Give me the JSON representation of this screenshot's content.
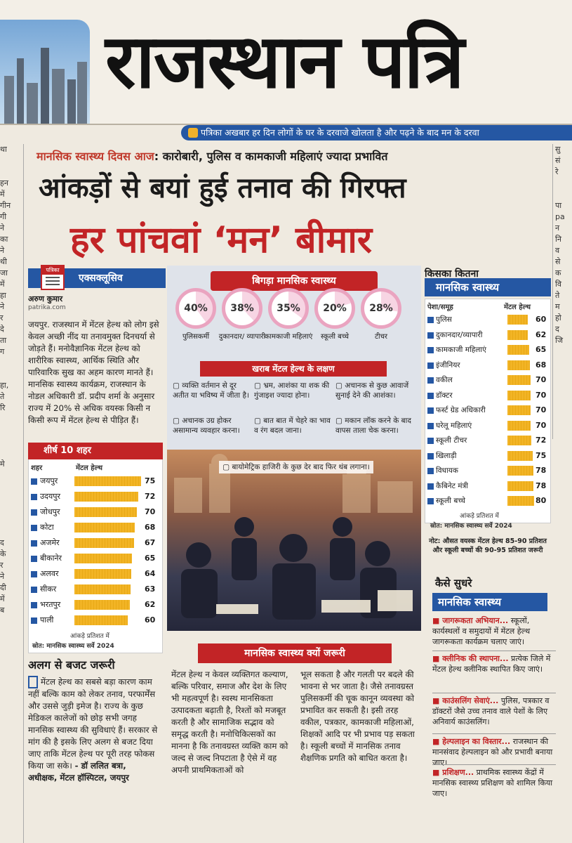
{
  "masthead": {
    "title": "राजस्थान पत्रि",
    "tagline": "पत्रिका अखबार हर दिन लोगों के घर के दरवाजे खोलता है और पढ़ने के बाद मन के दरवा"
  },
  "left_strip": [
    "था",
    "",
    "",
    "हन",
    "में",
    "गीन",
    "गी",
    "ने",
    "का",
    "ने",
    "थी",
    "जा",
    "में",
    "हा",
    "ने",
    "र",
    "दे",
    "ता",
    "ग",
    "",
    "",
    "हा,",
    "ते",
    "रि",
    "",
    "",
    "",
    "",
    "मे",
    "",
    "",
    "",
    "",
    "",
    "",
    "द",
    "के",
    "र",
    "ने",
    "दी",
    "में",
    "ब"
  ],
  "right_strip": [
    "सु",
    "सं",
    "रे",
    "",
    "",
    "पा",
    "pa",
    "न",
    "नि",
    "व",
    "से",
    "क",
    "वि",
    "ते",
    "म",
    "हो",
    "द",
    "जि",
    "",
    "",
    "",
    "",
    "",
    "",
    "",
    "",
    "प",
    "",
    "गि"
  ],
  "kicker": {
    "lead": "मानसिक स्वास्थ्य दिवस आज",
    "rest": ": कारोबारी, पुलिस व कामकाजी महिलाएं ज्यादा प्रभावित"
  },
  "headline": {
    "line1": "आंकड़ों से बयां हुई तनाव की गिरफ्त",
    "line2": "हर पांचवां ‘मन’ बीमार"
  },
  "byline": {
    "label": "एक्सक्लूसिव",
    "logo": "पत्रिका",
    "author": "अरुण कुमार",
    "site": "patrika.com"
  },
  "intro": "जयपुर. राजस्थान में मेंटल हेल्थ को लोग इसे केवल अच्छी नींद या तनावमुक्त दिनचर्या से जोड़ते हैं। मनोवैज्ञानिक मेंटल हेल्थ को शारीरिक स्वास्थ्य, आर्थिक स्थिति और पारिवारिक सुख का अहम कारण मानते हैं। मानसिक स्वास्थ्य कार्यक्रम, राजस्थान के नोडल अधिकारी डॉ. प्रदीप शर्मा के अनुसार राज्य में 20% से अधिक वयस्क किसी न किसी रूप में मेंटल हेल्थ से पीड़ित हैं।",
  "cities": {
    "title": "शीर्ष 10 शहर",
    "col_city": "शहर",
    "col_value": "मेंटल हेल्थ",
    "rows": [
      {
        "name": "जयपुर",
        "value": 75
      },
      {
        "name": "उदयपुर",
        "value": 72
      },
      {
        "name": "जोधपुर",
        "value": 70
      },
      {
        "name": "कोटा",
        "value": 68
      },
      {
        "name": "अजमेर",
        "value": 67
      },
      {
        "name": "बीकानेर",
        "value": 65
      },
      {
        "name": "अलवर",
        "value": 64
      },
      {
        "name": "सीकर",
        "value": 63
      },
      {
        "name": "भरतपुर",
        "value": 62
      },
      {
        "name": "पाली",
        "value": 60
      }
    ],
    "unit_note": "आंकड़े प्रतिशत में",
    "source": "स्रोत: मानसिक स्वास्थ्य सर्वे 2024"
  },
  "budget": {
    "title": "अलग से बजट जरूरी",
    "text": "मेंटल हेल्थ का सबसे बड़ा कारण काम नहीं बल्कि काम को लेकर तनाव, परफार्मेंस और उससे जुड़ी इमेज है। राज्य के कुछ मेडिकल कालेजों को छोड़ सभी जगह मानसिक स्वास्थ्य की सुविधाएं हैं। सरकार से मांग की है इसके लिए अलग से बजट दिया जाए ताकि मेंटल हेल्थ पर पूरी तरह फोकस किया जा सके।",
    "quote_by": "- डॉ ललित बत्रा,",
    "designation": "अधीक्षक, मेंटल हॉस्पिटल, जयपुर"
  },
  "center": {
    "title": "बिगड़ा मानसिक स्वास्थ्य",
    "groups": [
      {
        "value": "40%",
        "label": "पुलिसकर्मी"
      },
      {
        "value": "38%",
        "label": "दुकानदार/ व्यापारी"
      },
      {
        "value": "35%",
        "label": "कामकाजी महिलाएं"
      },
      {
        "value": "20%",
        "label": "स्कूली बच्चे"
      },
      {
        "value": "28%",
        "label": "टीचर"
      }
    ],
    "symptoms_title": "खराब मेंटल हेल्थ के लक्षण",
    "symptoms": [
      "व्यक्ति वर्तमान से दूर अतीत या भविष्य में जीता है।",
      "भ्रम, आशंका या शक की गुंजाइश ज्यादा होना।",
      "अचानक से कुछ आवाजें सुनाई देने की आशंका।",
      "अचानक उग्र होकर असामान्य व्यवहार करना।",
      "बात बात में चेहरे का भाव व रंग बदल जाना।",
      "मकान लॉक करने के बाद वापस ताला चेक करना।",
      "बायोमेट्रिक हाजिरी के कुछ देर बाद फिर थंब लगाना।"
    ]
  },
  "why": {
    "title": "मानसिक स्वास्थ्य क्यों जरूरी",
    "col1": "मेंटल हेल्थ न केवल व्यक्तिगत कल्याण, बल्कि परिवार, समाज और देश के लिए भी महत्वपूर्ण है। स्वस्थ मानसिकता उत्पादकता बढ़ाती है, रिश्तों को मजबूत करती है और सामाजिक सद्भाव को समृद्ध करती है। मनोचिकित्सकों का मानना है कि तनावग्रस्त व्यक्ति काम को जल्द से जल्द निपटाता है ऐसे में वह अपनी प्राथमिकताओं को",
    "col2": "भूल सकता है और गलती पर बदले की भावना से भर जाता है। जैसे तनावग्रस्त पुलिसकर्मी की चूक कानून व्यवस्था को प्रभावित कर सकती है। इसी तरह वकील, पत्रकार, कामकाजी महिलाओं, शिक्षकों आदि पर भी प्रभाव पड़ सकता है। स्कूली बच्चों में मानसिक तनाव शैक्षणिक प्रगति को बाधित करता है।"
  },
  "professions": {
    "title1": "किसका कितना",
    "title2": "मानसिक स्वास्थ्य",
    "col_prof": "पेशा/समूह",
    "col_value": "मेंटल हेल्थ",
    "rows": [
      {
        "name": "पुलिस",
        "value": 60
      },
      {
        "name": "दुकानदार/व्यापारी",
        "value": 62
      },
      {
        "name": "कामकाजी महिलाएं",
        "value": 65
      },
      {
        "name": "इंजीनियर",
        "value": 68
      },
      {
        "name": "वकील",
        "value": 70
      },
      {
        "name": "डॉक्टर",
        "value": 70
      },
      {
        "name": "फर्स्ट ग्रेड अधिकारी",
        "value": 70
      },
      {
        "name": "घरेलू महिलाएं",
        "value": 70
      },
      {
        "name": "स्कूली टीचर",
        "value": 72
      },
      {
        "name": "खिलाड़ी",
        "value": 75
      },
      {
        "name": "विधायक",
        "value": 78
      },
      {
        "name": "कैबिनेट मंत्री",
        "value": 78
      },
      {
        "name": "स्कूली बच्चे",
        "value": 80
      }
    ],
    "unit_note": "आंकड़े प्रतिशत में",
    "source": "स्रोत: मानसिक स्वास्थ्य सर्वे 2024",
    "note": "नोट: औसत वयस्क मेंटल हेल्थ 85-90 प्रतिशत और स्कूली बच्चों की 90-95 प्रतिशत जरूरी"
  },
  "improve": {
    "title1": "कैसे सुधरे",
    "title2": "मानसिक स्वास्थ्य",
    "items": [
      {
        "head": "जागरूकता अभियान...",
        "text": " स्कूलों, कार्यस्थलों व समुदायों में मेंटल हेल्थ जागरूकता कार्यक्रम चलाए जाएं।"
      },
      {
        "head": "क्लीनिक की स्थापना...",
        "text": " प्रत्येक जिले में मेंटल हेल्थ क्लीनिक स्थापित किए जाएं।"
      },
      {
        "head": "काउंसलिंग सेवाएं...",
        "text": " पुलिस, पत्रकार व डॉक्टरों जैसे उच्च तनाव वाले पेशों के लिए अनिवार्य काउंसलिंग।"
      },
      {
        "head": "हेल्पलाइन का विस्तार...",
        "text": " राजस्थान की मानसंवाद हेल्पलाइन को और प्रभावी बनाया जाए।"
      },
      {
        "head": "प्रशिक्षण...",
        "text": " प्राथमिक स्वास्थ्य केंद्रों में मानसिक स्वास्थ्य प्रशिक्षण को शामिल किया जाए।"
      }
    ]
  },
  "colors": {
    "accent_red": "#c22426",
    "accent_blue": "#2557a3",
    "bar_gold": "#f2b425",
    "ring_pink": "#eaa4c0"
  }
}
